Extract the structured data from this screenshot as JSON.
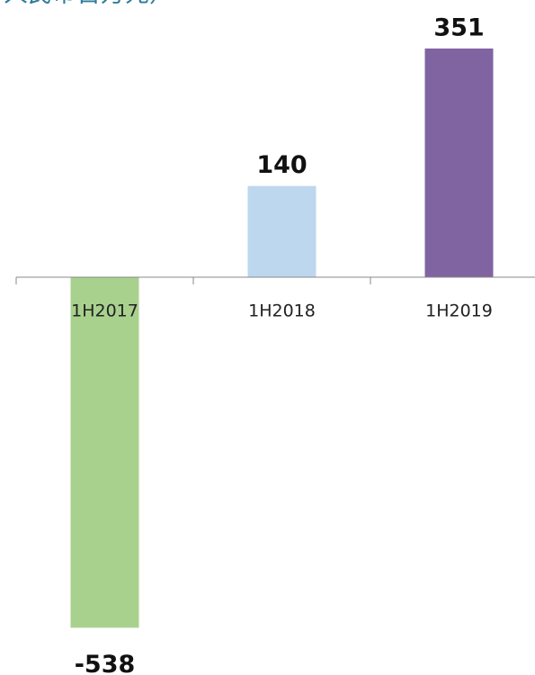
{
  "chart_data": {
    "type": "bar",
    "title": "人民币百万元）",
    "categories": [
      "1H2017",
      "1H2018",
      "1H2019"
    ],
    "values": [
      -538,
      140,
      351
    ],
    "colors": [
      "#a9d18e",
      "#bdd7ee",
      "#8064a2"
    ]
  }
}
